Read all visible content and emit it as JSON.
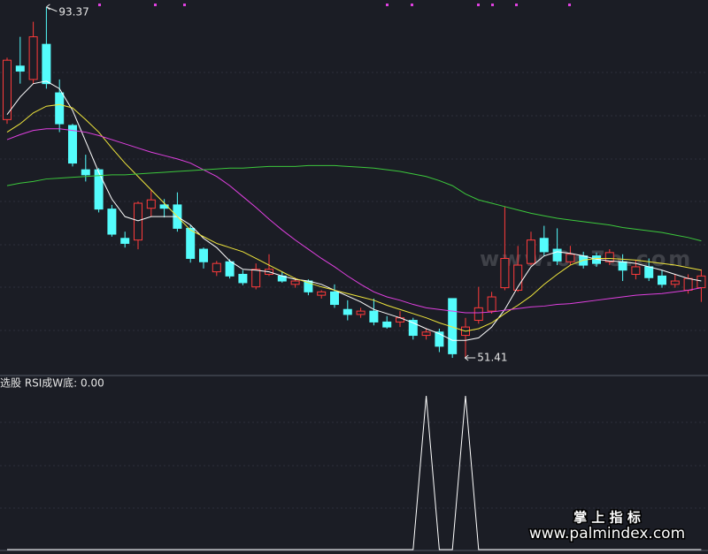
{
  "chart_data": [
    {
      "type": "candlestick",
      "open": [
        79.9,
        86.3,
        84.7,
        88.9,
        83.1,
        79.2,
        73.9,
        73.9,
        69.2,
        65.7,
        65.5,
        69.3,
        69.7,
        69.7,
        66.9,
        64.4,
        61.7,
        62.9,
        61.4,
        59.9,
        61.4,
        61.2,
        60.2,
        60.6,
        58.9,
        59.3,
        57.2,
        56.6,
        57.0,
        55.7,
        55.7,
        55.9,
        54.1,
        54.5,
        58.5,
        54.1,
        55.9,
        57.0,
        59.8,
        59.5,
        62.7,
        65.7,
        64.4,
        62.9,
        63.6,
        63.6,
        62.9,
        62.9,
        61.4,
        62.3,
        61.2,
        60.2,
        59.5,
        59.8
      ],
      "high": [
        87.3,
        89.8,
        91.6,
        93.37,
        84.7,
        79.4,
        75.7,
        74.1,
        69.7,
        66.5,
        70.1,
        71.5,
        70.4,
        71.2,
        67.3,
        64.6,
        63.0,
        63.2,
        61.9,
        62.7,
        63.8,
        61.7,
        61.0,
        60.8,
        59.5,
        60.2,
        58.3,
        57.4,
        58.5,
        56.4,
        57.0,
        56.2,
        54.9,
        54.9,
        58.5,
        56.2,
        59.9,
        59.3,
        69.5,
        64.8,
        66.5,
        67.2,
        66.9,
        64.8,
        64.1,
        64.0,
        64.4,
        63.8,
        63.1,
        63.3,
        61.9,
        61.4,
        61.4,
        62.0
      ],
      "low": [
        79.4,
        84.2,
        84.2,
        83.6,
        78.4,
        74.3,
        72.5,
        68.8,
        65.9,
        64.6,
        64.4,
        68.3,
        68.2,
        66.5,
        62.8,
        62.1,
        61.2,
        60.9,
        60.1,
        59.6,
        61.2,
        60.4,
        59.8,
        58.9,
        58.5,
        57.4,
        55.9,
        56.2,
        55.3,
        54.9,
        55.1,
        53.6,
        53.6,
        52.1,
        51.41,
        51.5,
        55.5,
        56.7,
        59.5,
        59.3,
        62.5,
        63.6,
        62.5,
        62.5,
        62.1,
        62.3,
        62.5,
        60.6,
        60.8,
        60.6,
        59.8,
        59.8,
        59.1,
        58.1
      ],
      "close": [
        87.0,
        85.7,
        89.8,
        84.2,
        79.4,
        74.7,
        73.3,
        69.2,
        66.2,
        65.1,
        69.9,
        70.3,
        69.3,
        66.9,
        63.3,
        62.9,
        62.7,
        61.2,
        60.4,
        62.0,
        62.0,
        60.6,
        60.6,
        59.3,
        59.3,
        57.8,
        56.6,
        57.0,
        55.7,
        55.1,
        56.2,
        54.1,
        54.5,
        52.8,
        51.9,
        55.1,
        57.4,
        58.7,
        63.3,
        62.5,
        65.5,
        64.1,
        63.0,
        63.8,
        62.5,
        62.7,
        64.0,
        61.9,
        62.3,
        61.0,
        60.2,
        60.6,
        60.9,
        61.2
      ],
      "up_color": "#ff3b3b",
      "down_color": "#54fcfc",
      "ylim": [
        49.3,
        94.2
      ],
      "extreme_labels": true,
      "series": [
        {
          "color": "#ffffff",
          "values": [
            80.5,
            82.6,
            84.2,
            84.5,
            83.6,
            81.0,
            77.3,
            73.6,
            70.4,
            68.3,
            67.8,
            68.3,
            68.3,
            68.3,
            67.3,
            65.7,
            64.6,
            63.0,
            62.0,
            61.9,
            61.7,
            61.2,
            60.8,
            60.6,
            60.2,
            59.5,
            58.8,
            58.1,
            57.2,
            56.7,
            56.2,
            55.6,
            54.9,
            54.3,
            53.5,
            53.5,
            53.8,
            55.1,
            57.2,
            59.9,
            62.3,
            63.6,
            64.1,
            63.9,
            63.6,
            63.2,
            63.0,
            62.9,
            62.7,
            62.3,
            61.9,
            61.4,
            60.9,
            60.6
          ]
        },
        {
          "color": "#f0e63c",
          "values": [
            78.4,
            79.4,
            80.7,
            81.5,
            81.7,
            81.3,
            79.9,
            78.4,
            76.5,
            74.7,
            73.1,
            71.5,
            69.9,
            68.3,
            66.7,
            65.9,
            65.1,
            64.6,
            64.1,
            63.3,
            62.5,
            61.7,
            60.9,
            60.4,
            59.9,
            59.5,
            59.1,
            58.7,
            58.3,
            57.7,
            57.2,
            56.7,
            56.2,
            55.6,
            55.1,
            54.6,
            54.9,
            55.6,
            56.7,
            57.7,
            58.8,
            60.2,
            61.4,
            62.5,
            63.1,
            63.3,
            63.3,
            63.2,
            63.1,
            62.9,
            62.7,
            62.5,
            62.2,
            61.9
          ]
        },
        {
          "color": "#e040e0",
          "values": [
            77.5,
            78.1,
            78.6,
            78.8,
            78.8,
            78.6,
            78.4,
            78.0,
            77.5,
            77.0,
            76.5,
            76.0,
            75.6,
            75.2,
            74.7,
            73.9,
            73.1,
            72.0,
            70.7,
            69.4,
            68.0,
            66.7,
            65.5,
            64.4,
            63.3,
            62.3,
            61.2,
            60.2,
            59.3,
            58.7,
            58.3,
            57.8,
            57.4,
            57.2,
            57.0,
            56.8,
            56.8,
            56.9,
            57.1,
            57.3,
            57.5,
            57.6,
            57.8,
            57.9,
            58.1,
            58.3,
            58.5,
            58.7,
            58.9,
            59.0,
            59.1,
            59.3,
            59.5,
            59.8
          ]
        },
        {
          "color": "#3cc83c",
          "values": [
            72.0,
            72.3,
            72.5,
            72.8,
            72.9,
            73.0,
            73.1,
            73.2,
            73.3,
            73.3,
            73.4,
            73.5,
            73.6,
            73.7,
            73.8,
            73.9,
            74.0,
            74.1,
            74.1,
            74.2,
            74.3,
            74.3,
            74.3,
            74.4,
            74.4,
            74.4,
            74.3,
            74.2,
            74.1,
            73.9,
            73.7,
            73.4,
            73.1,
            72.6,
            72.0,
            71.0,
            70.3,
            69.9,
            69.5,
            69.1,
            68.7,
            68.4,
            68.1,
            67.9,
            67.7,
            67.5,
            67.3,
            67.0,
            66.8,
            66.6,
            66.4,
            66.1,
            65.8,
            65.4
          ]
        }
      ]
    },
    {
      "type": "line",
      "title": "选股  RSI成W底: 0.00",
      "color": "#ffffff",
      "ylim": [
        0,
        1
      ],
      "values": [
        0,
        0,
        0,
        0,
        0,
        0,
        0,
        0,
        0,
        0,
        0,
        0,
        0,
        0,
        0,
        0,
        0,
        0,
        0,
        0,
        0,
        0,
        0,
        0,
        0,
        0,
        0,
        0,
        0,
        0,
        0,
        0,
        1,
        0,
        0,
        1,
        0,
        0,
        0,
        0,
        0,
        0,
        0,
        0,
        0,
        0,
        0,
        0,
        0,
        0,
        0,
        0,
        0,
        0
      ]
    }
  ],
  "watermarks": [
    "www.0o7o.com",
    "掌 上 指 标",
    "www.palmindex.com"
  ]
}
